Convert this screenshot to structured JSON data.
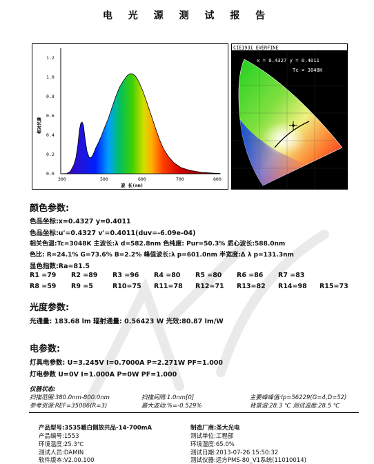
{
  "title": "电 光 源 测 试 报 告",
  "spectrum": {
    "xlabel": "波 长(nm)",
    "ylabel": "相对光谱",
    "x_ticks": [
      "300",
      "500",
      "600",
      "700",
      "800"
    ],
    "y_ticks": [
      "0.0",
      "0.2",
      "0.4",
      "0.6",
      "0.8",
      "1.0",
      "1.2"
    ]
  },
  "cie": {
    "header": "CIE1931 EVERFINE",
    "coords": "x = 0.4327 y = 0.4011",
    "tc": "Tc = 3048K"
  },
  "color_params": {
    "heading": "颜色参数:",
    "line1": "色品坐标:x=0.4327  y=0.4011",
    "line2": "色品坐标:u'=0.4327  v'=0.4011(duv=-6.09e-04)",
    "line3": "相关色温:Tc=3048K  主波长:λ d=582.8nm 色纯度: Pur=50.3% 质心波长:588.0nm",
    "line4": "色比: R=24.1% G=73.6% B=2.2%   峰值波长:λ p=601.0nm 半宽度:Δ λ p=131.3nm",
    "line5": "显色指数:Ra=81.5",
    "row1": [
      "R1 =79",
      "R2 =89",
      "R3 =96",
      "R4 =80",
      "R5 =80",
      "R6 =86",
      "R7 =83"
    ],
    "row2": [
      "R8 =59",
      "R9 =5",
      "R10=75",
      "R11=78",
      "R12=71",
      "R13=82",
      "R14=98",
      "R15=73"
    ]
  },
  "photometric": {
    "heading": "光度参数:",
    "line": "光通量: 183.68 lm   辐射通量: 0.56423 W   光效:80.87 lm/W"
  },
  "electrical": {
    "heading": "电参数:",
    "line1": "灯具电参数: U=3.245V  I=0.7000A  P=2.271W PF=1.000",
    "line2": "灯电参数  U=0V  I=1.000A  P=0W PF=1.000"
  },
  "instrument": {
    "heading": "仪器状态:",
    "scan_range": "扫描范围:380.0nm-800.0nm",
    "scan_step": "扫描间隔:1.0nm[0]",
    "peak": "主要峰峰值:Ip=56229(G=4,D=52)",
    "ref": "参考资源:REF=35086(R=3)",
    "deviation": "最大波动:%=-0.529%",
    "temp": "背景温:28.3 ℃ 测试温度:28.5 ℃"
  },
  "footer": {
    "model": "产品型号:3535暖白侧放共品-14-700mA",
    "maker": "制造厂商:圣大光电",
    "serial": "产品编号:1553",
    "unit": "测试单位:工程部",
    "amb_temp": "环境温度:25.3℃",
    "humidity": "环境湿度:65.0%",
    "tester": "测试人员:DAMIN",
    "date": "测试日期:2013-07-26 15:50:32",
    "software": "软件版本:V2.00.100",
    "instrument": "测试仪器:远方PMS-80_V1系统(11010014)"
  }
}
